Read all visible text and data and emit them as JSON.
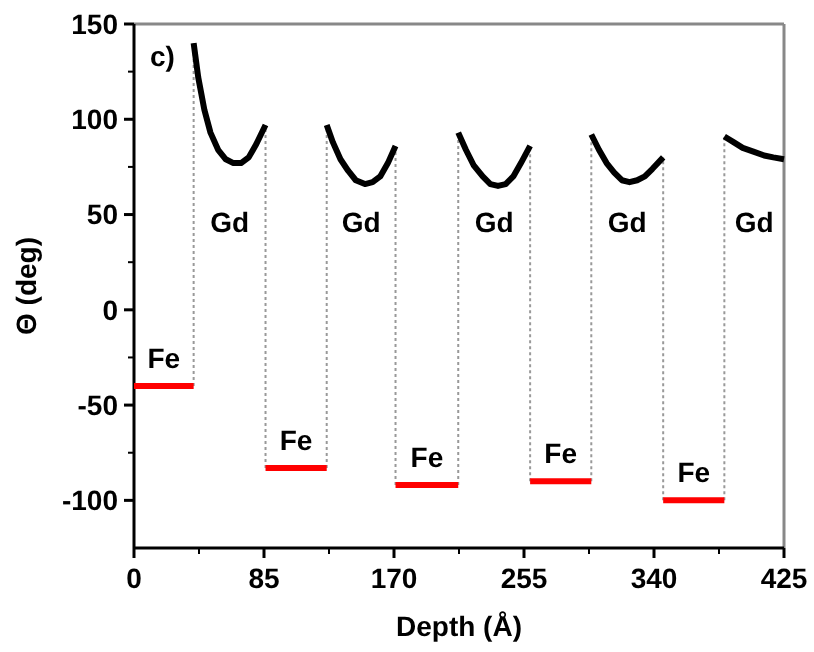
{
  "chart_data": {
    "type": "line",
    "xlabel": "Depth (Å)",
    "ylabel": "Θ (deg)",
    "xlim": [
      0,
      425
    ],
    "xticks": [
      0,
      85,
      170,
      255,
      340,
      425
    ],
    "ylim": [
      -125,
      150
    ],
    "yticks": [
      -100,
      -50,
      0,
      50,
      100,
      150
    ],
    "series": [
      {
        "color": "#000000",
        "x": [
          39,
          42,
          46,
          50,
          55,
          60,
          65,
          70,
          75,
          80,
          86,
          null,
          126,
          130,
          135,
          140,
          145,
          151,
          156,
          161,
          166,
          171,
          null,
          212,
          217,
          222,
          228,
          233,
          238,
          243,
          248,
          253,
          259,
          null,
          299,
          304,
          309,
          314,
          319,
          324,
          329,
          334,
          339,
          346,
          null,
          386,
          392,
          398,
          405,
          412,
          418,
          425
        ],
        "values": [
          140,
          122,
          105,
          93,
          84,
          79,
          77,
          77,
          80,
          87,
          97,
          null,
          97,
          88,
          79,
          73,
          68,
          66,
          67,
          70,
          77,
          86,
          null,
          93,
          84,
          76,
          70,
          66,
          65,
          66,
          70,
          77,
          86,
          null,
          92,
          84,
          77,
          72,
          68,
          67,
          68,
          70,
          74,
          80,
          null,
          91,
          88,
          85,
          83,
          81,
          80,
          79
        ]
      },
      {
        "color": "#ff0000",
        "x": [
          0,
          39,
          null,
          86,
          126,
          null,
          171,
          212,
          null,
          259,
          299,
          null,
          346,
          386
        ],
        "values": [
          -40,
          -40,
          null,
          -83,
          -83,
          null,
          -92,
          -92,
          null,
          -90,
          -90,
          null,
          -100,
          -100
        ]
      }
    ],
    "ref_lines": [
      {
        "axis": "x",
        "value": 39,
        "color": "#999999",
        "line_style": "dotted"
      },
      {
        "axis": "x",
        "value": 86,
        "color": "#999999",
        "line_style": "dotted"
      },
      {
        "axis": "x",
        "value": 126,
        "color": "#999999",
        "line_style": "dotted"
      },
      {
        "axis": "x",
        "value": 171,
        "color": "#999999",
        "line_style": "dotted"
      },
      {
        "axis": "x",
        "value": 212,
        "color": "#999999",
        "line_style": "dotted"
      },
      {
        "axis": "x",
        "value": 259,
        "color": "#999999",
        "line_style": "dotted"
      },
      {
        "axis": "x",
        "value": 299,
        "color": "#999999",
        "line_style": "dotted"
      },
      {
        "axis": "x",
        "value": 346,
        "color": "#999999",
        "line_style": "dotted"
      },
      {
        "axis": "x",
        "value": 386,
        "color": "#999999",
        "line_style": "dotted"
      }
    ],
    "annotations": [
      "c)",
      "Gd",
      "Gd",
      "Gd",
      "Gd",
      "Gd",
      "Fe",
      "Fe",
      "Fe",
      "Fe",
      "Fe"
    ],
    "line_style": "solid",
    "marker": "none",
    "grid": false
  }
}
